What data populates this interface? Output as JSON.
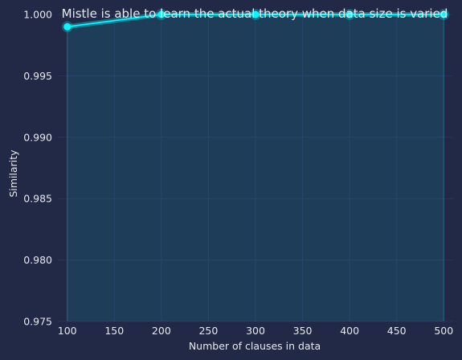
{
  "chart_data": {
    "type": "line",
    "title": "Mistle is able to learn the actual theory when data size is varied",
    "xlabel": "Number of clauses in data",
    "ylabel": "Similarity",
    "x": [
      100,
      200,
      300,
      400,
      500
    ],
    "series": [
      {
        "name": "Similarity",
        "values": [
          0.999,
          1.0,
          1.0,
          1.0,
          1.0
        ]
      }
    ],
    "xlim": [
      90,
      510
    ],
    "ylim": [
      0.975,
      1.0
    ],
    "xticks": [
      100,
      150,
      200,
      250,
      300,
      350,
      400,
      450,
      500
    ],
    "xtick_labels": [
      "100",
      "150",
      "200",
      "250",
      "300",
      "350",
      "400",
      "450",
      "500"
    ],
    "yticks": [
      0.975,
      0.98,
      0.985,
      0.99,
      0.995,
      1.0
    ],
    "ytick_labels": [
      "0.975",
      "0.980",
      "0.985",
      "0.990",
      "0.995",
      "1.000"
    ],
    "grid": true,
    "colors": {
      "line": "#08F7FE",
      "background": "#212946",
      "grid": "#2A3459",
      "text": "#E6E8EE"
    }
  }
}
